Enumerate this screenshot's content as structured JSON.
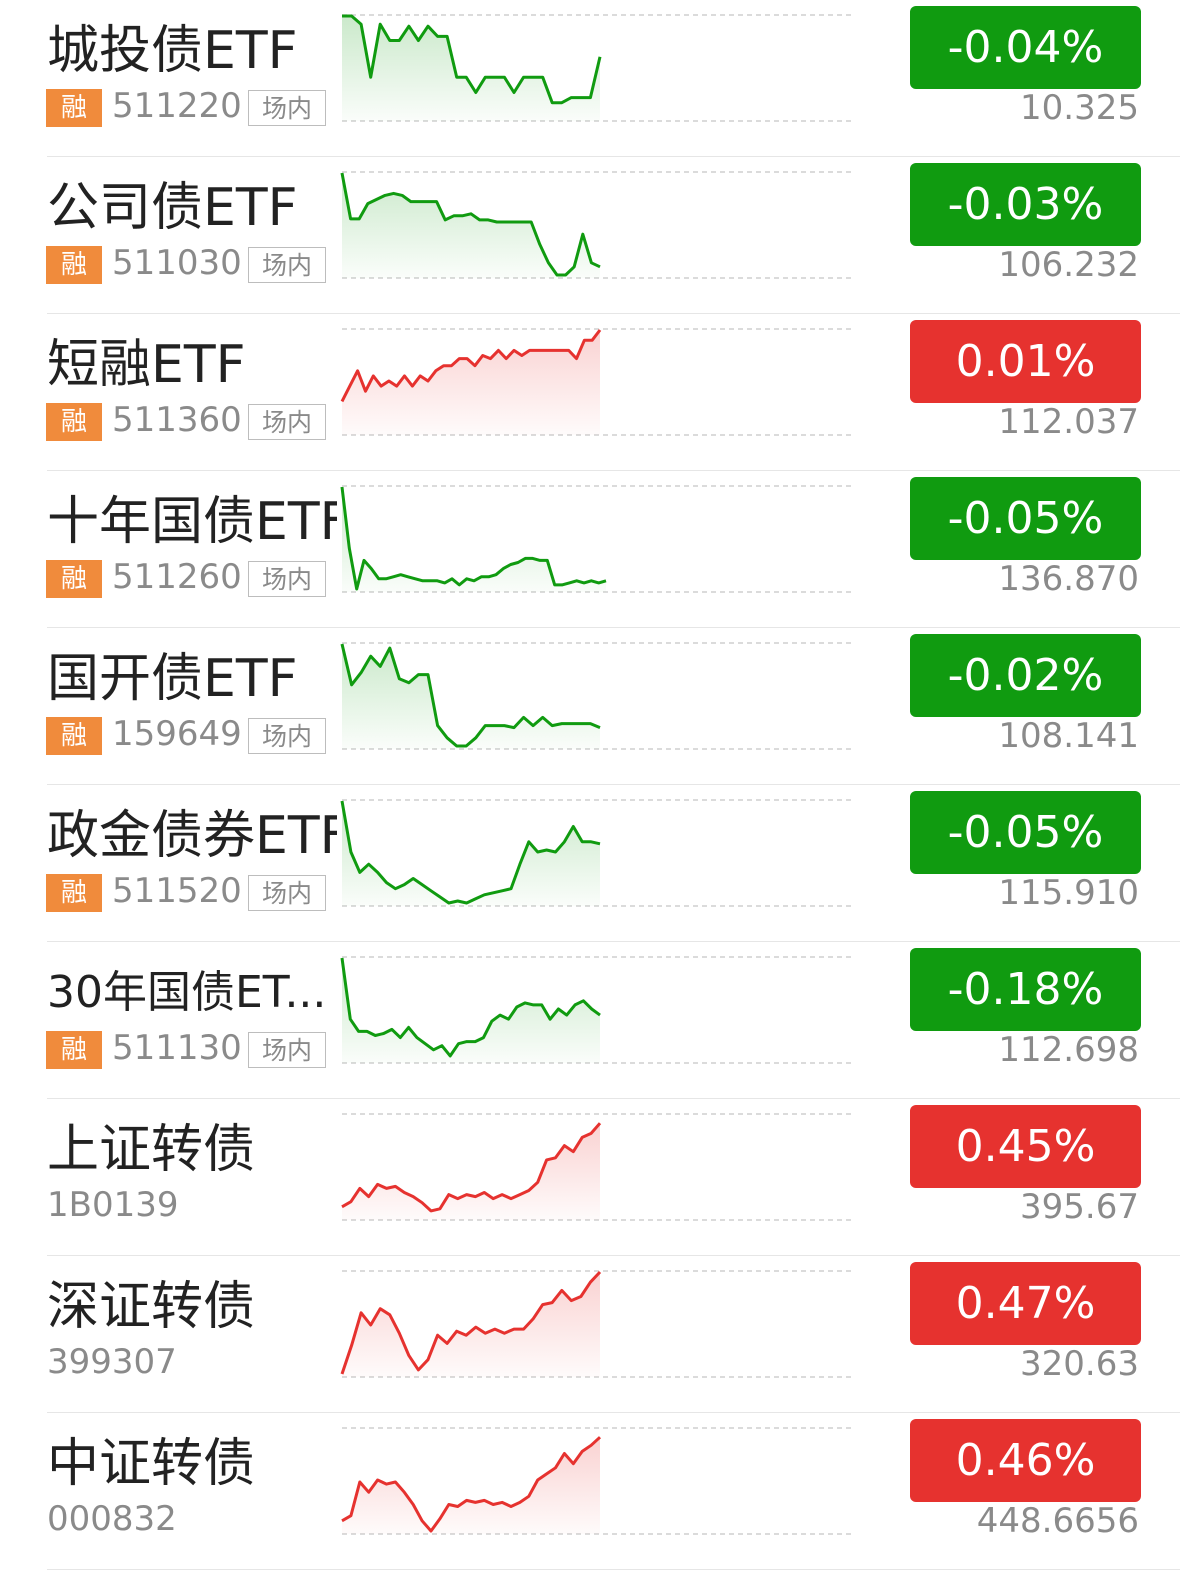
{
  "colors": {
    "up": "#e6322f",
    "down": "#109b10",
    "rong_badge": "#f08b3c"
  },
  "items": [
    {
      "name": "城投债ETF",
      "code": "511220",
      "rong": "融",
      "tag": "场内",
      "change": "-0.04%",
      "price": "10.325",
      "trend": "down",
      "spark": [
        100,
        100,
        92,
        40,
        92,
        76,
        76,
        90,
        76,
        90,
        80,
        80,
        40,
        40,
        25,
        40,
        40,
        40,
        25,
        40,
        40,
        40,
        15,
        15,
        20,
        20,
        20,
        60
      ]
    },
    {
      "name": "公司债ETF",
      "code": "511030",
      "rong": "融",
      "tag": "场内",
      "change": "-0.03%",
      "price": "106.232",
      "trend": "down",
      "spark": [
        100,
        55,
        55,
        70,
        74,
        78,
        80,
        78,
        72,
        72,
        72,
        72,
        54,
        58,
        58,
        60,
        54,
        54,
        52,
        52,
        52,
        52,
        52,
        30,
        12,
        0,
        0,
        8,
        40,
        12,
        8
      ]
    },
    {
      "name": "短融ETF",
      "code": "511360",
      "rong": "融",
      "tag": "场内",
      "change": "0.01%",
      "price": "112.037",
      "trend": "up",
      "spark": [
        30,
        45,
        60,
        40,
        55,
        45,
        50,
        45,
        55,
        45,
        55,
        50,
        60,
        65,
        65,
        72,
        72,
        65,
        75,
        72,
        80,
        72,
        80,
        75,
        80,
        80,
        80,
        80,
        80,
        80,
        72,
        90,
        90,
        100
      ]
    },
    {
      "name": "十年国债ETF",
      "code": "511260",
      "rong": "融",
      "tag": "场内",
      "change": "-0.05%",
      "price": "136.870",
      "trend": "down",
      "spark": [
        100,
        40,
        0,
        28,
        20,
        10,
        10,
        12,
        14,
        12,
        10,
        8,
        8,
        8,
        6,
        10,
        4,
        10,
        8,
        12,
        12,
        14,
        20,
        24,
        26,
        30,
        30,
        28,
        28,
        4,
        4,
        6,
        8,
        6,
        8,
        6,
        8
      ]
    },
    {
      "name": "国开债ETF",
      "code": "159649",
      "rong": "融",
      "tag": "场内",
      "change": "-0.02%",
      "price": "108.141",
      "trend": "down",
      "spark": [
        100,
        60,
        72,
        88,
        78,
        96,
        66,
        62,
        70,
        70,
        20,
        8,
        0,
        0,
        8,
        20,
        20,
        20,
        18,
        28,
        20,
        28,
        20,
        22,
        22,
        22,
        22,
        18
      ]
    },
    {
      "name": "政金债券ETF",
      "code": "511520",
      "rong": "融",
      "tag": "场内",
      "change": "-0.05%",
      "price": "115.910",
      "trend": "down",
      "spark": [
        100,
        50,
        30,
        38,
        30,
        20,
        14,
        18,
        24,
        18,
        12,
        6,
        0,
        2,
        0,
        4,
        8,
        10,
        12,
        14,
        38,
        60,
        50,
        52,
        50,
        60,
        75,
        60,
        60,
        58
      ]
    },
    {
      "name": "30年国债ET...",
      "code": "511130",
      "rong": "融",
      "tag": "场内",
      "change": "-0.18%",
      "price": "112.698",
      "trend": "down",
      "long": true,
      "spark": [
        100,
        40,
        28,
        28,
        24,
        26,
        30,
        22,
        32,
        22,
        16,
        10,
        14,
        4,
        16,
        18,
        18,
        22,
        38,
        44,
        40,
        52,
        56,
        54,
        54,
        40,
        50,
        44,
        54,
        58,
        50,
        44
      ]
    },
    {
      "name": "上证转债",
      "code": "1B0139",
      "change": "0.45%",
      "price": "395.67",
      "trend": "up",
      "spark": [
        10,
        15,
        28,
        20,
        32,
        28,
        30,
        24,
        20,
        14,
        6,
        8,
        22,
        18,
        22,
        20,
        24,
        18,
        22,
        18,
        22,
        26,
        34,
        56,
        58,
        70,
        64,
        78,
        82,
        92
      ]
    },
    {
      "name": "深证转债",
      "code": "399307",
      "change": "0.47%",
      "price": "320.63",
      "trend": "up",
      "spark": [
        0,
        28,
        60,
        48,
        64,
        58,
        40,
        18,
        4,
        14,
        38,
        30,
        42,
        38,
        46,
        40,
        44,
        40,
        44,
        44,
        54,
        68,
        70,
        82,
        72,
        76,
        90,
        100
      ]
    },
    {
      "name": "中证转债",
      "code": "000832",
      "change": "0.46%",
      "price": "448.6656",
      "trend": "up",
      "spark": [
        10,
        15,
        48,
        38,
        50,
        46,
        48,
        38,
        26,
        10,
        0,
        12,
        26,
        24,
        30,
        28,
        30,
        26,
        28,
        24,
        28,
        34,
        50,
        56,
        62,
        76,
        66,
        78,
        84,
        92
      ]
    }
  ]
}
